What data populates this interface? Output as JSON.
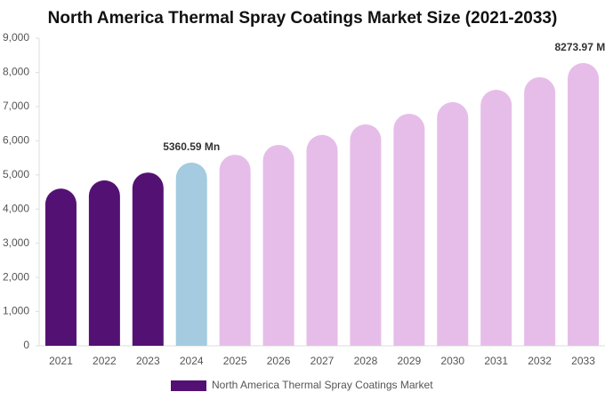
{
  "chart_data": {
    "type": "bar",
    "title": "North America Thermal Spray Coatings Market Size (2021-2033)",
    "categories": [
      "2021",
      "2022",
      "2023",
      "2024",
      "2025",
      "2026",
      "2027",
      "2028",
      "2029",
      "2030",
      "2031",
      "2032",
      "2033"
    ],
    "series": [
      {
        "name": "North America Thermal Spray Coatings Market",
        "color": "#541174",
        "values": [
          4600,
          4840,
          5070,
          5360.59,
          5590,
          5880,
          6170,
          6480,
          6790,
          7130,
          7490,
          7860,
          8273.97
        ],
        "colors": [
          "#541174",
          "#541174",
          "#541174",
          "#a4cbe0",
          "#e6bde9",
          "#e6bde9",
          "#e6bde9",
          "#e6bde9",
          "#e6bde9",
          "#e6bde9",
          "#e6bde9",
          "#e6bde9",
          "#e6bde9"
        ],
        "value_labels": [
          null,
          null,
          null,
          "5360.59 Mn",
          null,
          null,
          null,
          null,
          null,
          null,
          null,
          null,
          "8273.97 Mn"
        ]
      }
    ],
    "ylim": [
      0,
      9000
    ],
    "yticks": [
      0,
      {
        "value": 1000,
        "label": "1,000"
      },
      {
        "value": 2000,
        "label": "2,000"
      },
      {
        "value": 3000,
        "label": "3,000"
      },
      {
        "value": 4000,
        "label": "4,000"
      },
      {
        "value": 5000,
        "label": "5,000"
      },
      {
        "value": 6000,
        "label": "6,000"
      },
      {
        "value": 7000,
        "label": "7,000"
      },
      {
        "value": 8000,
        "label": "8,000"
      },
      {
        "value": 9000,
        "label": "9,000"
      }
    ],
    "grid": false
  }
}
